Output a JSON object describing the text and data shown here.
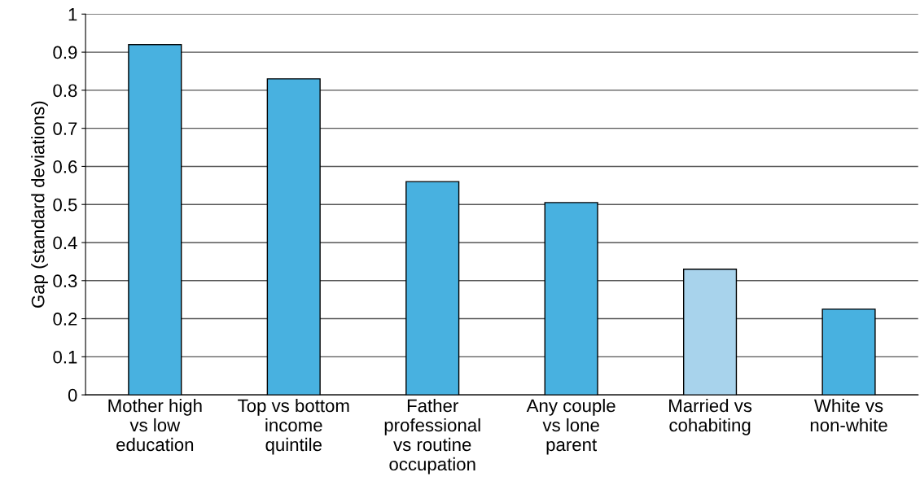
{
  "chart_data": {
    "type": "bar",
    "ylabel": "Gap (standard deviations)",
    "categories": [
      "Mother high\nvs low\neducation",
      "Top vs bottom\nincome\nquintile",
      "Father\nprofessional\nvs routine\noccupation",
      "Any couple\nvs lone\nparent",
      "Married vs\ncohabiting",
      "White vs\nnon-white"
    ],
    "values": [
      0.92,
      0.83,
      0.56,
      0.505,
      0.33,
      0.225
    ],
    "colors": [
      "#48b1e0",
      "#48b1e0",
      "#48b1e0",
      "#48b1e0",
      "#a8d3ec",
      "#48b1e0"
    ],
    "ylim": [
      0,
      1
    ],
    "yticks": [
      0,
      0.1,
      0.2,
      0.3,
      0.4,
      0.5,
      0.6,
      0.7,
      0.8,
      0.9,
      1
    ],
    "grid": "y"
  }
}
